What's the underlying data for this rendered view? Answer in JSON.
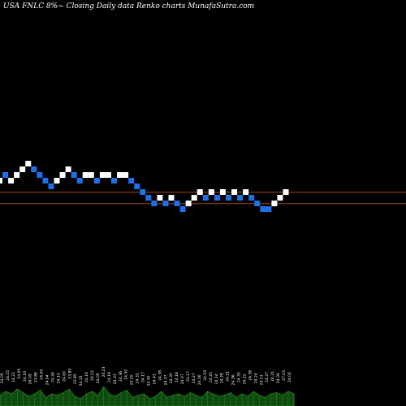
{
  "header": {
    "caption": "USA FNLC 8%~  Closing Daily data  Renko  charts MunafaSutra.com"
  },
  "colors": {
    "background": "#000000",
    "up_brick": "#ffffff",
    "down_brick": "#1f6fe8",
    "reference_line": "#b8520f",
    "volume_fill": "#0f4a0f",
    "volume_edge": "#2ea02e"
  },
  "chart_data": {
    "type": "renko",
    "brick_size": 1,
    "box_levels": [
      21,
      22,
      21,
      22,
      23,
      24,
      23,
      22,
      21,
      20,
      21,
      22,
      23,
      22,
      21,
      22,
      22,
      21,
      22,
      22,
      21,
      22,
      22,
      21,
      20,
      19,
      18,
      17,
      18,
      17,
      18,
      17,
      16,
      17,
      18,
      19,
      18,
      19,
      18,
      19,
      18,
      19,
      18,
      19,
      18,
      17,
      16,
      16,
      17,
      18,
      19
    ],
    "box_directions": [
      "up",
      "down",
      "up",
      "up",
      "up",
      "up",
      "down",
      "down",
      "down",
      "down",
      "up",
      "up",
      "up",
      "down",
      "down",
      "up",
      "up",
      "down",
      "up",
      "up",
      "down",
      "up",
      "up",
      "down",
      "down",
      "down",
      "down",
      "down",
      "up",
      "down",
      "up",
      "down",
      "down",
      "up",
      "up",
      "up",
      "down",
      "up",
      "down",
      "up",
      "down",
      "up",
      "down",
      "up",
      "down",
      "down",
      "down",
      "down",
      "up",
      "up",
      "up"
    ],
    "reference_lines": [
      19,
      17
    ],
    "volume_labels": [
      "24.05",
      "24.15",
      "24.23",
      "24.05",
      "24.16",
      "24.09",
      "23.86",
      "24.09",
      "24.04",
      "24.26",
      "24.15",
      "24.00",
      "23.85",
      "23.85",
      "24.15",
      "24.19",
      "24.12",
      "24.09",
      "24.23",
      "24.19",
      "24.33",
      "24.36",
      "24.50",
      "24.20",
      "24.31",
      "24.17",
      "24.30",
      "24.43",
      "24.38",
      "24.37",
      "24.30",
      "24.18",
      "24.07",
      "24.17",
      "24.27",
      "24.16",
      "24.19",
      "24.20",
      "24.14",
      "24.28",
      "24.21",
      "24.36",
      "24.30",
      "24.22",
      "24.36",
      "24.24",
      "24.11",
      "24.27",
      "24.21",
      "24.30",
      "27.03",
      "24.05"
    ],
    "volume_series": [
      0.45,
      0.6,
      0.5,
      0.7,
      0.55,
      0.4,
      0.5,
      0.65,
      0.35,
      0.5,
      0.45,
      0.55,
      0.7,
      0.4,
      0.3,
      0.5,
      0.6,
      0.45,
      0.8,
      0.5,
      0.4,
      0.55,
      0.65,
      0.35,
      0.45,
      0.5,
      0.3,
      0.4,
      0.6,
      0.35,
      0.45,
      0.5,
      0.4,
      0.55,
      0.45,
      0.35,
      0.6,
      0.5,
      0.4,
      0.45,
      0.55,
      0.35,
      0.5,
      0.4,
      0.6,
      0.45,
      0.35,
      0.5,
      0.55,
      0.45,
      0.6,
      0.5
    ]
  }
}
